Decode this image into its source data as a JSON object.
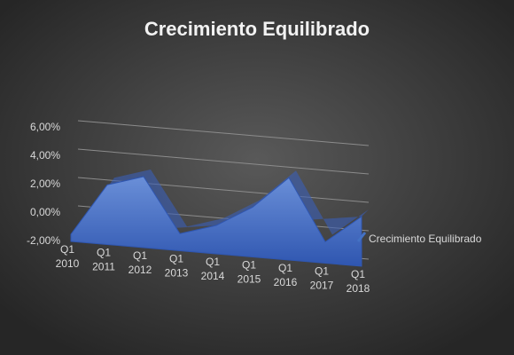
{
  "chart_data": {
    "type": "area3d",
    "title": "Crecimiento Equilibrado",
    "categories": [
      "Q1 2010",
      "Q1 2011",
      "Q1 2012",
      "Q1 2013",
      "Q1 2014",
      "Q1 2015",
      "Q1 2016",
      "Q1 2017",
      "Q1 2018"
    ],
    "series": [
      {
        "name": "Crecimiento Equilibrado",
        "color": "#4472c4",
        "values": [
          -1.5,
          2.2,
          3.0,
          -0.8,
          0.0,
          1.5,
          3.8,
          -0.5,
          1.5
        ]
      }
    ],
    "ylim": [
      -2,
      6
    ],
    "yticks": [
      {
        "value": -2,
        "label": "-2,00%"
      },
      {
        "value": 0,
        "label": "0,00%"
      },
      {
        "value": 2,
        "label": "2,00%"
      },
      {
        "value": 4,
        "label": "4,00%"
      },
      {
        "value": 6,
        "label": "6,00%"
      }
    ],
    "grid": true,
    "legend": "right"
  }
}
